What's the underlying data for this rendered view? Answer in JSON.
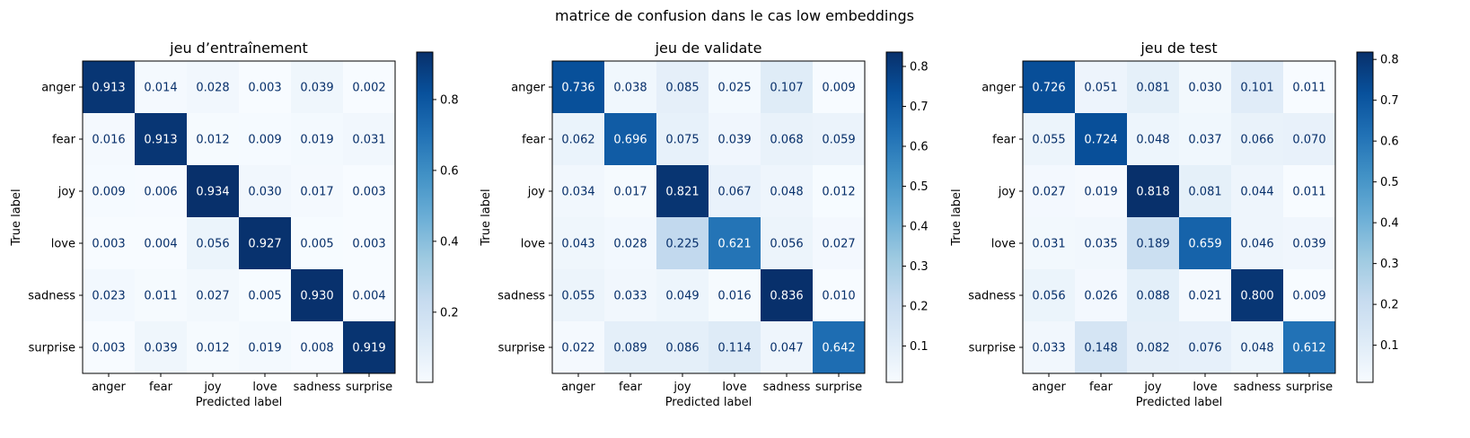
{
  "figure_title": "matrice de confusion dans le cas low embeddings",
  "chart_data": [
    {
      "type": "heatmap",
      "title": "jeu d’entraînement",
      "xlabel": "Predicted label",
      "ylabel": "True label",
      "x_categories": [
        "anger",
        "fear",
        "joy",
        "love",
        "sadness",
        "surprise"
      ],
      "y_categories": [
        "anger",
        "fear",
        "joy",
        "love",
        "sadness",
        "surprise"
      ],
      "values": [
        [
          0.913,
          0.014,
          0.028,
          0.003,
          0.039,
          0.002
        ],
        [
          0.016,
          0.913,
          0.012,
          0.009,
          0.019,
          0.031
        ],
        [
          0.009,
          0.006,
          0.934,
          0.03,
          0.017,
          0.003
        ],
        [
          0.003,
          0.004,
          0.056,
          0.927,
          0.005,
          0.003
        ],
        [
          0.023,
          0.011,
          0.027,
          0.005,
          0.93,
          0.004
        ],
        [
          0.003,
          0.039,
          0.012,
          0.019,
          0.008,
          0.919
        ]
      ],
      "cell_labels": [
        [
          "0.913",
          "0.014",
          "0.028",
          "0.003",
          "0.039",
          "0.002"
        ],
        [
          "0.016",
          "0.913",
          "0.012",
          "0.009",
          "0.019",
          "0.031"
        ],
        [
          "0.009",
          "0.006",
          "0.934",
          "0.030",
          "0.017",
          "0.003"
        ],
        [
          "0.003",
          "0.004",
          "0.056",
          "0.927",
          "0.005",
          "0.003"
        ],
        [
          "0.023",
          "0.011",
          "0.027",
          "0.005",
          "0.930",
          "0.004"
        ],
        [
          "0.003",
          "0.039",
          "0.012",
          "0.019",
          "0.008",
          "0.919"
        ]
      ],
      "colormap": "Blues",
      "colorbar": {
        "range": [
          0.002,
          0.934
        ],
        "ticks": [
          "0.2",
          "0.4",
          "0.6",
          "0.8"
        ]
      }
    },
    {
      "type": "heatmap",
      "title": "jeu de validate",
      "xlabel": "Predicted label",
      "ylabel": "True label",
      "x_categories": [
        "anger",
        "fear",
        "joy",
        "love",
        "sadness",
        "surprise"
      ],
      "y_categories": [
        "anger",
        "fear",
        "joy",
        "love",
        "sadness",
        "surprise"
      ],
      "values": [
        [
          0.736,
          0.038,
          0.085,
          0.025,
          0.107,
          0.009
        ],
        [
          0.062,
          0.696,
          0.075,
          0.039,
          0.068,
          0.059
        ],
        [
          0.034,
          0.017,
          0.821,
          0.067,
          0.048,
          0.012
        ],
        [
          0.043,
          0.028,
          0.225,
          0.621,
          0.056,
          0.027
        ],
        [
          0.055,
          0.033,
          0.049,
          0.016,
          0.836,
          0.01
        ],
        [
          0.022,
          0.089,
          0.086,
          0.114,
          0.047,
          0.642
        ]
      ],
      "cell_labels": [
        [
          "0.736",
          "0.038",
          "0.085",
          "0.025",
          "0.107",
          "0.009"
        ],
        [
          "0.062",
          "0.696",
          "0.075",
          "0.039",
          "0.068",
          "0.059"
        ],
        [
          "0.034",
          "0.017",
          "0.821",
          "0.067",
          "0.048",
          "0.012"
        ],
        [
          "0.043",
          "0.028",
          "0.225",
          "0.621",
          "0.056",
          "0.027"
        ],
        [
          "0.055",
          "0.033",
          "0.049",
          "0.016",
          "0.836",
          "0.010"
        ],
        [
          "0.022",
          "0.089",
          "0.086",
          "0.114",
          "0.047",
          "0.642"
        ]
      ],
      "colormap": "Blues",
      "colorbar": {
        "range": [
          0.009,
          0.836
        ],
        "ticks": [
          "0.1",
          "0.2",
          "0.3",
          "0.4",
          "0.5",
          "0.6",
          "0.7",
          "0.8"
        ]
      }
    },
    {
      "type": "heatmap",
      "title": "jeu de test",
      "xlabel": "Predicted label",
      "ylabel": "True label",
      "x_categories": [
        "anger",
        "fear",
        "joy",
        "love",
        "sadness",
        "surprise"
      ],
      "y_categories": [
        "anger",
        "fear",
        "joy",
        "love",
        "sadness",
        "surprise"
      ],
      "values": [
        [
          0.726,
          0.051,
          0.081,
          0.03,
          0.101,
          0.011
        ],
        [
          0.055,
          0.724,
          0.048,
          0.037,
          0.066,
          0.07
        ],
        [
          0.027,
          0.019,
          0.818,
          0.081,
          0.044,
          0.011
        ],
        [
          0.031,
          0.035,
          0.189,
          0.659,
          0.046,
          0.039
        ],
        [
          0.056,
          0.026,
          0.088,
          0.021,
          0.8,
          0.009
        ],
        [
          0.033,
          0.148,
          0.082,
          0.076,
          0.048,
          0.612
        ]
      ],
      "cell_labels": [
        [
          "0.726",
          "0.051",
          "0.081",
          "0.030",
          "0.101",
          "0.011"
        ],
        [
          "0.055",
          "0.724",
          "0.048",
          "0.037",
          "0.066",
          "0.070"
        ],
        [
          "0.027",
          "0.019",
          "0.818",
          "0.081",
          "0.044",
          "0.011"
        ],
        [
          "0.031",
          "0.035",
          "0.189",
          "0.659",
          "0.046",
          "0.039"
        ],
        [
          "0.056",
          "0.026",
          "0.088",
          "0.021",
          "0.800",
          "0.009"
        ],
        [
          "0.033",
          "0.148",
          "0.082",
          "0.076",
          "0.048",
          "0.612"
        ]
      ],
      "colormap": "Blues",
      "colorbar": {
        "range": [
          0.009,
          0.818
        ],
        "ticks": [
          "0.1",
          "0.2",
          "0.3",
          "0.4",
          "0.5",
          "0.6",
          "0.7",
          "0.8"
        ]
      }
    }
  ]
}
